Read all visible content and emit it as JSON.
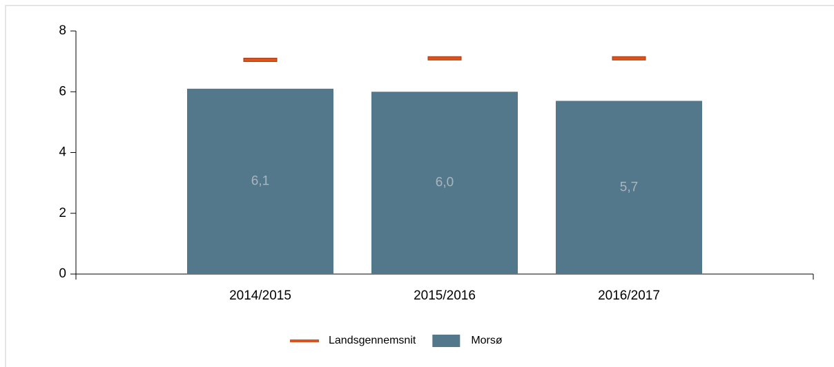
{
  "chart_data": {
    "type": "bar",
    "categories": [
      "2014/2015",
      "2015/2016",
      "2016/2017"
    ],
    "series": [
      {
        "name": "Landsgennemsnit",
        "type": "marker",
        "color": "#d9541e",
        "values": [
          7.05,
          7.1,
          7.1
        ]
      },
      {
        "name": "Morsø",
        "type": "bar",
        "color": "#53788b",
        "values": [
          6.1,
          6.0,
          5.7
        ],
        "value_labels": [
          "6,1",
          "6,0",
          "5,7"
        ]
      }
    ],
    "ylim": [
      0,
      8
    ],
    "yticks": [
      0,
      2,
      4,
      6,
      8
    ],
    "legend": "bottom"
  }
}
